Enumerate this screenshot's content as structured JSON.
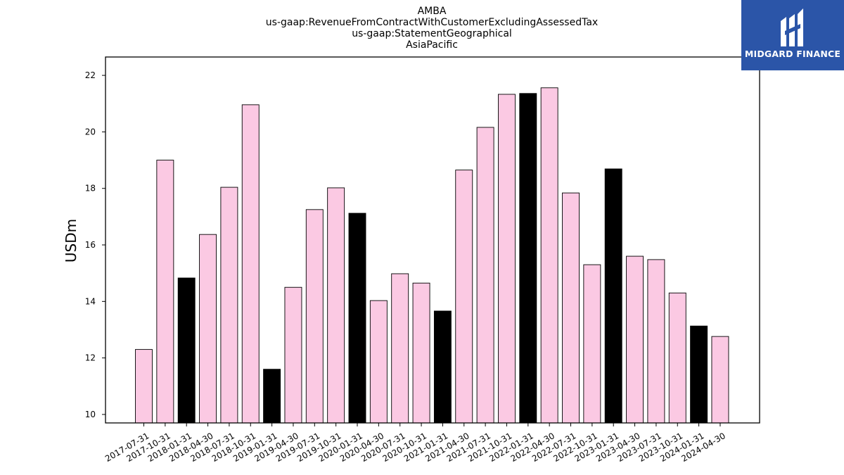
{
  "chart_data": {
    "type": "bar",
    "title_lines": [
      "AMBA",
      "us-gaap:RevenueFromContractWithCustomerExcludingAssessedTax",
      "us-gaap:StatementGeographical",
      "AsiaPacific"
    ],
    "xlabel": "",
    "ylabel": "USDm",
    "ylim": [
      9.7,
      22.65
    ],
    "yticks": [
      10,
      12,
      14,
      16,
      18,
      20,
      22
    ],
    "categories": [
      "2017-07-31",
      "2017-10-31",
      "2018-01-31",
      "2018-04-30",
      "2018-07-31",
      "2018-10-31",
      "2019-01-31",
      "2019-04-30",
      "2019-07-31",
      "2019-10-31",
      "2020-01-31",
      "2020-04-30",
      "2020-07-31",
      "2020-10-31",
      "2021-01-31",
      "2021-04-30",
      "2021-07-31",
      "2021-10-31",
      "2022-01-31",
      "2022-04-30",
      "2022-07-31",
      "2022-10-31",
      "2023-01-31",
      "2023-04-30",
      "2023-07-31",
      "2023-10-31",
      "2024-01-31",
      "2024-04-30"
    ],
    "values": [
      12.3,
      19.0,
      14.83,
      16.37,
      18.04,
      20.96,
      11.6,
      14.5,
      17.25,
      18.02,
      17.12,
      14.03,
      14.98,
      14.65,
      13.66,
      18.65,
      20.16,
      21.33,
      21.36,
      21.56,
      17.84,
      15.3,
      18.69,
      15.6,
      15.48,
      14.3,
      13.13,
      12.76
    ],
    "bar_highlight": [
      false,
      false,
      true,
      false,
      false,
      false,
      true,
      false,
      false,
      false,
      true,
      false,
      false,
      false,
      true,
      false,
      false,
      false,
      true,
      false,
      false,
      false,
      true,
      false,
      false,
      false,
      true,
      false
    ],
    "colors": {
      "normal": "#fbc9e3",
      "highlight": "#000000",
      "edge": "#000000"
    },
    "grid": false,
    "legend": "none"
  },
  "branding": {
    "logo_text": "MIDGARD FINANCE",
    "logo_bg": "#2b55a8"
  }
}
